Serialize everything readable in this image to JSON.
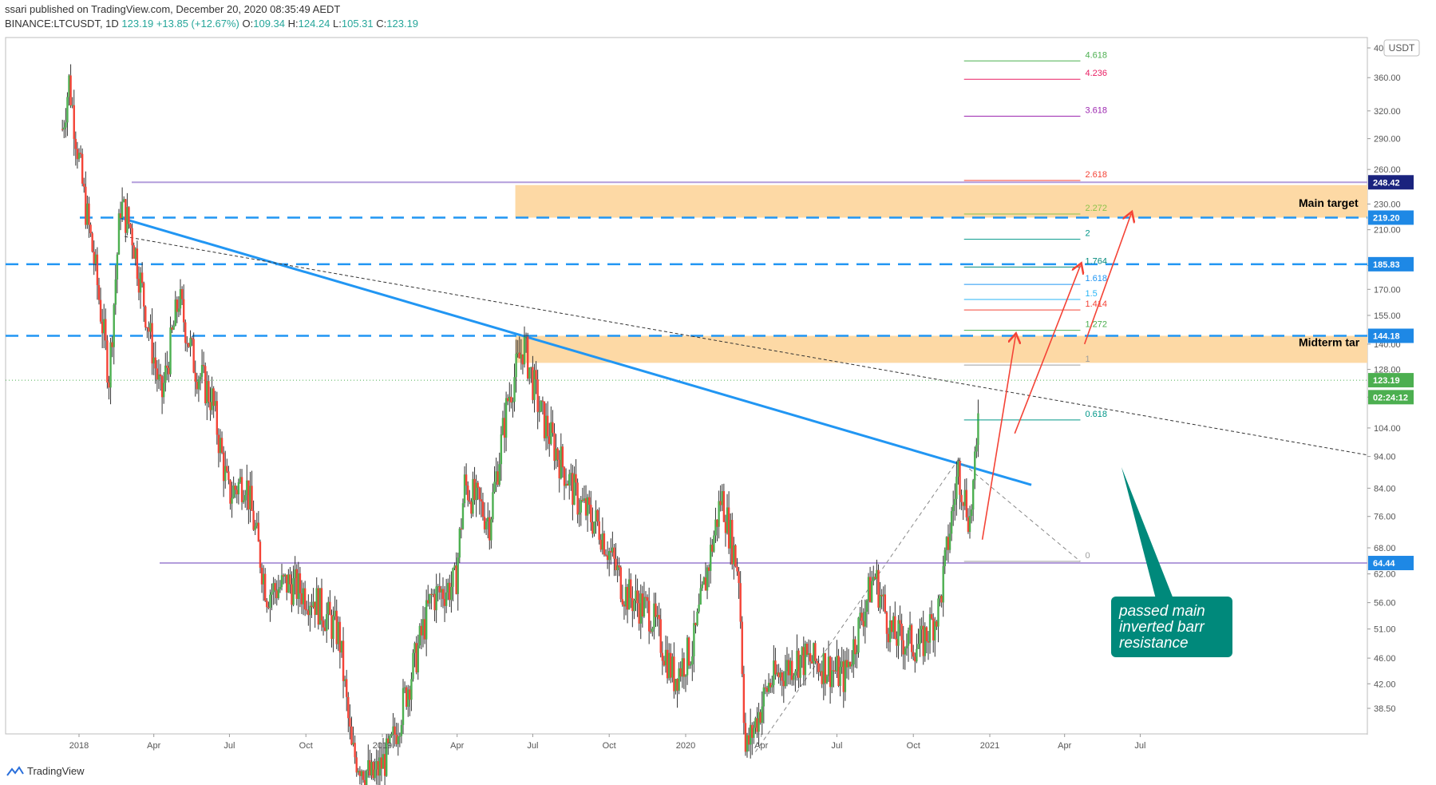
{
  "header": {
    "published": "ssari published on TradingView.com, December 20, 2020 08:35:49 AEDT",
    "symbol": "BINANCE:LTCUSDT, 1D",
    "last": "123.19",
    "change": "+13.85 (+12.67%)",
    "o_label": "O:",
    "o_value": "109.34",
    "h_label": "H:",
    "h_value": "124.24",
    "l_label": "L:",
    "l_value": "105.31",
    "c_label": "C:",
    "c_value": "123.19"
  },
  "footer": {
    "brand": "TradingView"
  },
  "chart_data": {
    "type": "candlestick",
    "title": "",
    "currency": "USDT",
    "ylim": [
      33,
      410
    ],
    "yscale": "log",
    "x_ticks": [
      "2018",
      "Apr",
      "Jul",
      "Oct",
      "2019",
      "Apr",
      "Jul",
      "Oct",
      "2020",
      "Apr",
      "Jul",
      "Oct",
      "2021",
      "Apr",
      "Jul"
    ],
    "y_ticks": [
      "400.00",
      "360.00",
      "320.00",
      "290.00",
      "260.00",
      "230.00",
      "210.00",
      "185.00",
      "170.00",
      "155.00",
      "140.00",
      "128.00",
      "116.00",
      "104.00",
      "94.00",
      "84.00",
      "76.00",
      "68.00",
      "62.00",
      "56.00",
      "51.00",
      "46.00",
      "42.00",
      "38.50"
    ],
    "price_series": [
      {
        "date": "2017-12-12",
        "price": 300
      },
      {
        "date": "2017-12-20",
        "price": 355
      },
      {
        "date": "2018-01-06",
        "price": 240
      },
      {
        "date": "2018-01-20",
        "price": 185
      },
      {
        "date": "2018-02-06",
        "price": 125
      },
      {
        "date": "2018-02-20",
        "price": 230
      },
      {
        "date": "2018-03-05",
        "price": 210
      },
      {
        "date": "2018-03-25",
        "price": 150
      },
      {
        "date": "2018-04-10",
        "price": 115
      },
      {
        "date": "2018-05-01",
        "price": 165
      },
      {
        "date": "2018-05-20",
        "price": 130
      },
      {
        "date": "2018-06-10",
        "price": 115
      },
      {
        "date": "2018-06-30",
        "price": 82
      },
      {
        "date": "2018-07-20",
        "price": 87
      },
      {
        "date": "2018-08-15",
        "price": 58
      },
      {
        "date": "2018-09-10",
        "price": 60
      },
      {
        "date": "2018-10-10",
        "price": 57
      },
      {
        "date": "2018-11-10",
        "price": 50
      },
      {
        "date": "2018-11-25",
        "price": 33
      },
      {
        "date": "2018-12-20",
        "price": 30
      },
      {
        "date": "2019-01-10",
        "price": 33
      },
      {
        "date": "2019-02-08",
        "price": 45
      },
      {
        "date": "2019-03-01",
        "price": 57
      },
      {
        "date": "2019-03-30",
        "price": 60
      },
      {
        "date": "2019-04-10",
        "price": 85
      },
      {
        "date": "2019-05-10",
        "price": 75
      },
      {
        "date": "2019-06-01",
        "price": 115
      },
      {
        "date": "2019-06-20",
        "price": 140
      },
      {
        "date": "2019-07-10",
        "price": 110
      },
      {
        "date": "2019-08-01",
        "price": 94
      },
      {
        "date": "2019-08-25",
        "price": 80
      },
      {
        "date": "2019-09-20",
        "price": 73
      },
      {
        "date": "2019-10-20",
        "price": 58
      },
      {
        "date": "2019-11-20",
        "price": 54
      },
      {
        "date": "2019-12-18",
        "price": 43
      },
      {
        "date": "2020-01-10",
        "price": 48
      },
      {
        "date": "2020-02-13",
        "price": 82
      },
      {
        "date": "2020-03-05",
        "price": 62
      },
      {
        "date": "2020-03-13",
        "price": 33
      },
      {
        "date": "2020-04-10",
        "price": 42
      },
      {
        "date": "2020-05-15",
        "price": 46
      },
      {
        "date": "2020-06-15",
        "price": 45
      },
      {
        "date": "2020-07-10",
        "price": 43
      },
      {
        "date": "2020-08-15",
        "price": 62
      },
      {
        "date": "2020-09-05",
        "price": 50
      },
      {
        "date": "2020-10-10",
        "price": 48
      },
      {
        "date": "2020-11-01",
        "price": 55
      },
      {
        "date": "2020-11-24",
        "price": 90
      },
      {
        "date": "2020-12-08",
        "price": 75
      },
      {
        "date": "2020-12-16",
        "price": 95
      },
      {
        "date": "2020-12-19",
        "price": 123.19
      }
    ],
    "horizontal_levels": [
      {
        "price": 248.42,
        "style": "solid",
        "color": "#b39ddb"
      },
      {
        "price": 219.2,
        "style": "dashed",
        "color": "#2196f3"
      },
      {
        "price": 185.83,
        "style": "dashed",
        "color": "#2196f3"
      },
      {
        "price": 144.18,
        "style": "dashed",
        "color": "#2196f3"
      },
      {
        "price": 64.44,
        "style": "solid",
        "color": "#b39ddb"
      }
    ],
    "price_labels": [
      {
        "text": "248.42",
        "price": 248.42,
        "bg": "#1a237e"
      },
      {
        "text": "219.20",
        "price": 219.2,
        "bg": "#1e88e5"
      },
      {
        "text": "185.83",
        "price": 185.83,
        "bg": "#1e88e5"
      },
      {
        "text": "144.18",
        "price": 144.18,
        "bg": "#1e88e5"
      },
      {
        "text": "123.19",
        "price": 123.19,
        "bg": "#4caf50"
      },
      {
        "text": "02:24:12",
        "price": 116,
        "bg": "#4caf50"
      },
      {
        "text": "64.44",
        "price": 64.44,
        "bg": "#1e88e5"
      }
    ],
    "zones": [
      {
        "name": "main-target-zone",
        "price_from": 219.2,
        "price_to": 246,
        "date_from": "2019-06-10",
        "date_to": "2021-09-15"
      },
      {
        "name": "midterm-target-zone",
        "price_from": 131,
        "price_to": 144.18,
        "date_from": "2019-06-10",
        "date_to": "2021-09-15"
      }
    ],
    "fib_levels": [
      {
        "label": "4.618",
        "price": 382,
        "color": "#4caf50"
      },
      {
        "label": "4.236",
        "price": 358,
        "color": "#e91e63"
      },
      {
        "label": "3.618",
        "price": 314,
        "color": "#9c27b0"
      },
      {
        "label": "2.618",
        "price": 250,
        "color": "#f44336"
      },
      {
        "label": "2.272",
        "price": 222,
        "color": "#8bc34a"
      },
      {
        "label": "2",
        "price": 203,
        "color": "#009688"
      },
      {
        "label": "1.764",
        "price": 184,
        "color": "#00897b"
      },
      {
        "label": "1.618",
        "price": 173,
        "color": "#2196f3"
      },
      {
        "label": "1.5",
        "price": 164,
        "color": "#29b6f6"
      },
      {
        "label": "1.414",
        "price": 158,
        "color": "#f44336"
      },
      {
        "label": "1.272",
        "price": 147,
        "color": "#4caf50"
      },
      {
        "label": "1",
        "price": 130,
        "color": "#9e9e9e"
      },
      {
        "label": "0.618",
        "price": 107,
        "color": "#009688"
      },
      {
        "label": "0",
        "price": 64.8,
        "color": "#9e9e9e"
      }
    ],
    "annotations": [
      {
        "text": "Main target",
        "color": "#000000"
      },
      {
        "text": "Midterm tar",
        "color": "#000000"
      },
      {
        "text": "passed main",
        "color": "#ffffff"
      },
      {
        "text": "inverted barr",
        "color": "#ffffff"
      },
      {
        "text": "resistance",
        "color": "#ffffff"
      }
    ],
    "colors": {
      "up": "#4caf50",
      "down": "#f44336",
      "trendline": "#2196f3",
      "callout": "#00897b",
      "zone": "#fdd9a5",
      "arrow": "#f44336"
    }
  }
}
